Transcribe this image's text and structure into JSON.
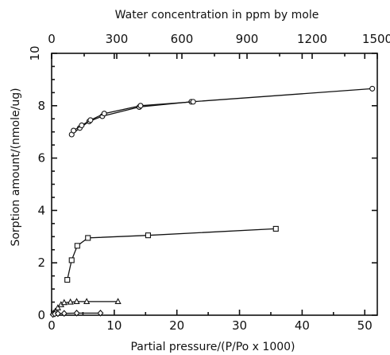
{
  "chart_data": {
    "type": "scatter",
    "xlabel": "Partial pressure/(P/Po x 1000)",
    "ylabel": "Sorption amount/(nmole/ug)",
    "top_xlabel": "Water concentration in ppm by mole",
    "xlim": [
      0,
      52
    ],
    "ylim": [
      0,
      10
    ],
    "top_xlim": [
      0,
      1500
    ],
    "x_ticks": [
      "0",
      "10",
      "20",
      "30",
      "40",
      "50"
    ],
    "y_ticks": [
      "0",
      "2",
      "4",
      "6",
      "8",
      "10"
    ],
    "top_x_ticks": [
      "0",
      "300",
      "600",
      "900",
      "1200",
      "1500"
    ],
    "grid": false,
    "series": [
      {
        "marker": "circle",
        "points": [
          [
            3.2,
            6.9
          ],
          [
            4.5,
            7.15
          ],
          [
            6.0,
            7.4
          ],
          [
            8.1,
            7.6
          ],
          [
            14.0,
            7.95
          ],
          [
            22.3,
            8.15
          ],
          [
            51.2,
            8.65
          ]
        ]
      },
      {
        "marker": "circle",
        "points": [
          [
            3.5,
            7.05
          ],
          [
            4.8,
            7.25
          ],
          [
            6.2,
            7.45
          ],
          [
            8.4,
            7.7
          ],
          [
            14.2,
            8.0
          ],
          [
            22.6,
            8.15
          ]
        ]
      },
      {
        "marker": "square",
        "points": [
          [
            2.5,
            1.35
          ],
          [
            3.2,
            2.1
          ],
          [
            4.1,
            2.65
          ],
          [
            5.8,
            2.95
          ],
          [
            15.4,
            3.05
          ],
          [
            35.8,
            3.3
          ]
        ]
      },
      {
        "marker": "triangle",
        "points": [
          [
            0.3,
            0.08
          ],
          [
            0.6,
            0.15
          ],
          [
            1.0,
            0.28
          ],
          [
            1.5,
            0.4
          ],
          [
            2.0,
            0.48
          ],
          [
            3.0,
            0.5
          ],
          [
            4.0,
            0.52
          ],
          [
            5.6,
            0.52
          ],
          [
            10.6,
            0.52
          ]
        ]
      },
      {
        "marker": "diamond",
        "points": [
          [
            0.2,
            0.03
          ],
          [
            0.5,
            0.05
          ],
          [
            1.0,
            0.06
          ],
          [
            2.0,
            0.07
          ],
          [
            4.0,
            0.08
          ],
          [
            7.8,
            0.08
          ]
        ]
      }
    ]
  }
}
